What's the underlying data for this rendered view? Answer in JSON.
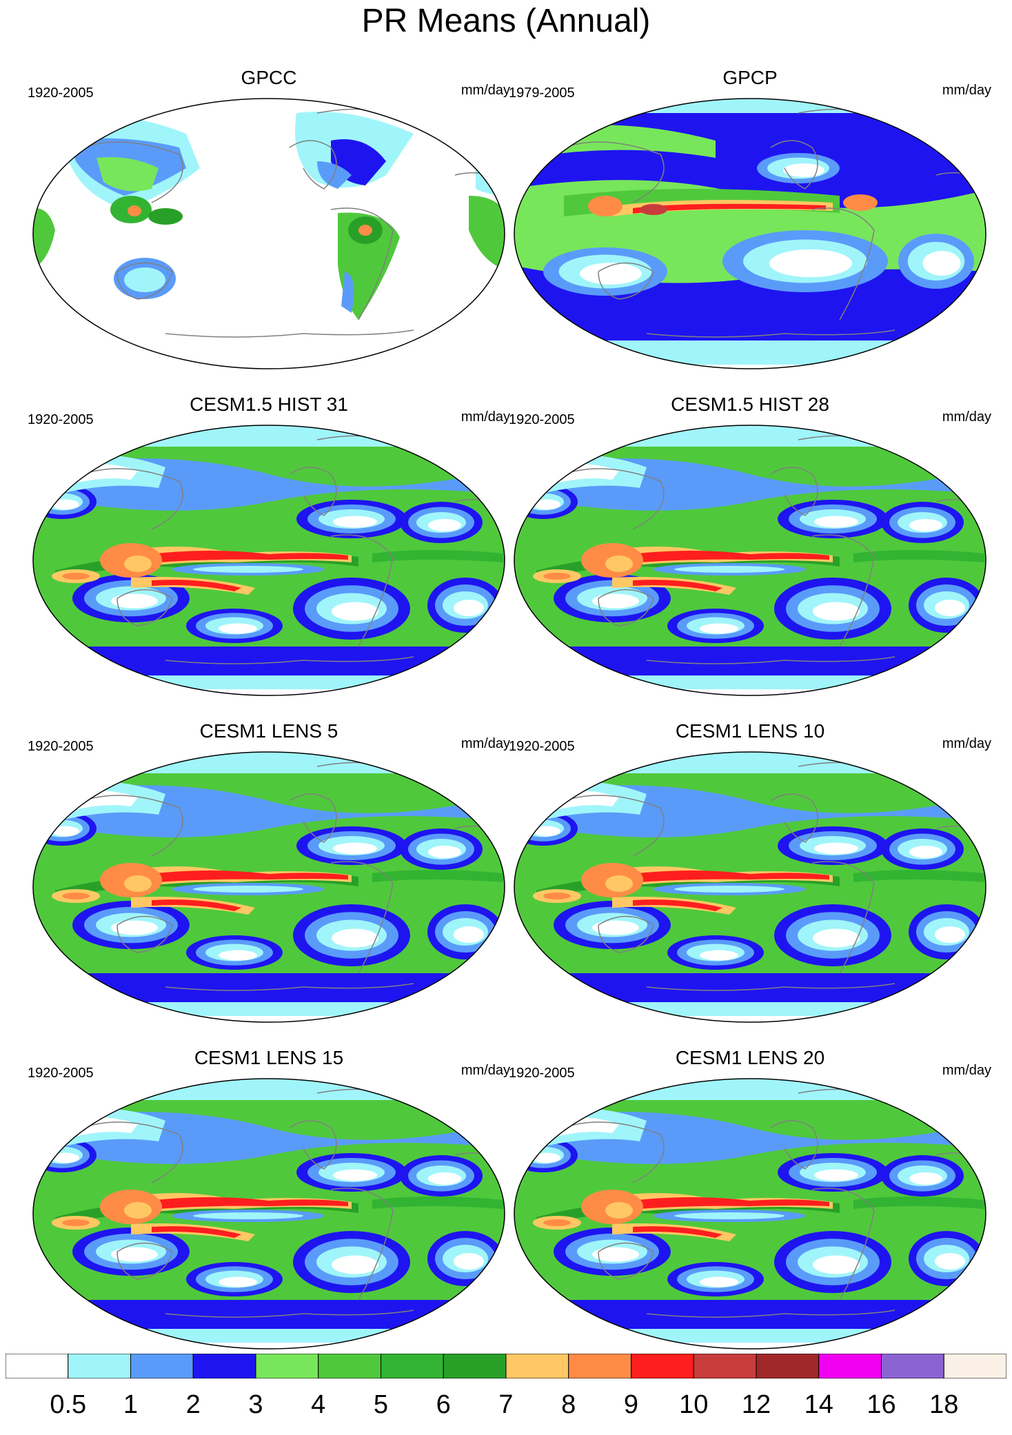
{
  "title": "PR Means (Annual)",
  "panels": [
    {
      "title": "GPCC",
      "period": "1920-2005",
      "units": "mm/day",
      "type": "obs_land"
    },
    {
      "title": "GPCP",
      "period": "1979-2005",
      "units": "mm/day",
      "type": "obs_global"
    },
    {
      "title": "CESM1.5 HIST 31",
      "period": "1920-2005",
      "units": "mm/day",
      "type": "model"
    },
    {
      "title": "CESM1.5 HIST 28",
      "period": "1920-2005",
      "units": "mm/day",
      "type": "model"
    },
    {
      "title": "CESM1 LENS 5",
      "period": "1920-2005",
      "units": "mm/day",
      "type": "model"
    },
    {
      "title": "CESM1 LENS 10",
      "period": "1920-2005",
      "units": "mm/day",
      "type": "model"
    },
    {
      "title": "CESM1 LENS 15",
      "period": "1920-2005",
      "units": "mm/day",
      "type": "model"
    },
    {
      "title": "CESM1 LENS 20",
      "period": "1920-2005",
      "units": "mm/day",
      "type": "model"
    }
  ],
  "colorbar": {
    "labels": [
      "0.5",
      "1",
      "2",
      "3",
      "4",
      "5",
      "6",
      "7",
      "8",
      "9",
      "10",
      "12",
      "14",
      "16",
      "18"
    ],
    "colors": [
      "#ffffff",
      "#a0f5fa",
      "#5a9bfa",
      "#1e14f0",
      "#78e65a",
      "#50c83c",
      "#32b432",
      "#28a028",
      "#ffc864",
      "#ff8c46",
      "#ff1e1e",
      "#c83c3c",
      "#a02828",
      "#f000f0",
      "#8c64d2",
      "#faf0e6"
    ]
  },
  "map_colors": {
    "ocean_default": "#ffffff",
    "coast": "#808080",
    "frame": "#000000"
  }
}
